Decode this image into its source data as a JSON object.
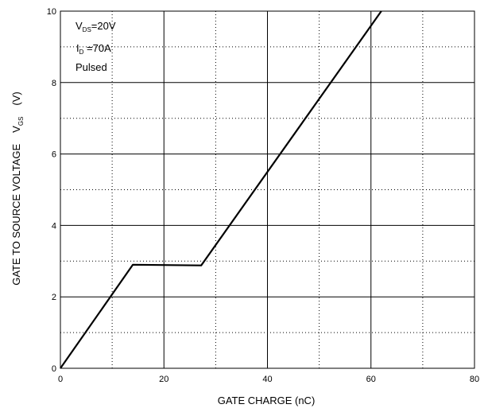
{
  "chart_data": {
    "type": "line",
    "title": "",
    "xlabel": "GATE CHARGE (nC)",
    "ylabel": {
      "main": "GATE TO SOURCE VOLTAGE",
      "symbol_main": "V",
      "symbol_sub": "GS",
      "unit": "(V)"
    },
    "xlim": [
      0,
      80
    ],
    "ylim": [
      0,
      10
    ],
    "x_ticks": [
      0,
      20,
      40,
      60,
      80
    ],
    "y_ticks": [
      0,
      2,
      4,
      6,
      8,
      10
    ],
    "x_minor_dotted": [
      10,
      30,
      50,
      70
    ],
    "y_minor_dotted": [
      1,
      3,
      5,
      7,
      9
    ],
    "grid": true,
    "series": [
      {
        "x": [
          0,
          14,
          27.2,
          62
        ],
        "y": [
          0,
          2.9,
          2.88,
          10
        ]
      }
    ],
    "annotations": {
      "line1": {
        "main": "V",
        "sub": "DS",
        "rest": "=20V"
      },
      "line2": {
        "main": "I",
        "sub": "D",
        "rest": " =70A"
      },
      "line3": "Pulsed"
    }
  }
}
